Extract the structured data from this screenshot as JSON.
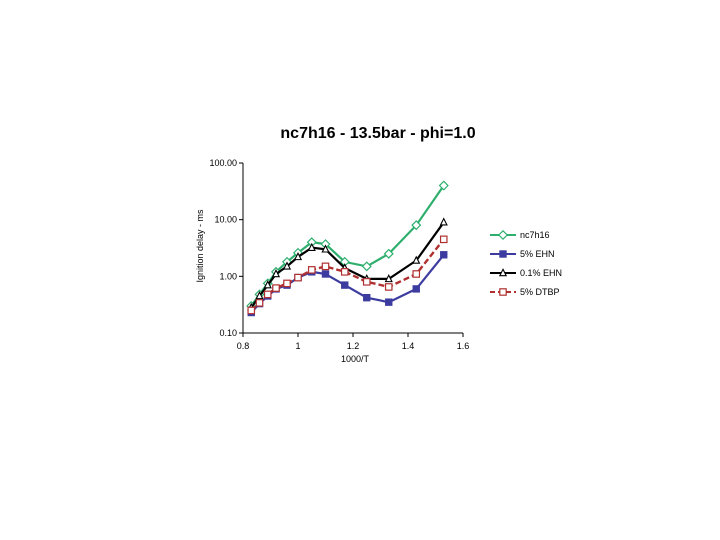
{
  "chart_data": {
    "type": "line",
    "title": "nc7h16 - 13.5bar - phi=1.0",
    "xlabel": "1000/T",
    "ylabel": "Ignition delay - ms",
    "xlim": [
      0.8,
      1.6
    ],
    "ylim": [
      0.1,
      100
    ],
    "yscale": "log",
    "x_ticks": [
      "0.8",
      "1",
      "1.2",
      "1.4",
      "1.6"
    ],
    "y_ticks": [
      "0.10",
      "1.00",
      "10.00",
      "100.00"
    ],
    "legend_position": "right",
    "grid": false,
    "series": [
      {
        "name": "nc7h16",
        "color": "#2EAF6E",
        "marker": "diamond",
        "dash": "solid",
        "x": [
          0.83,
          0.86,
          0.89,
          0.92,
          0.96,
          1.0,
          1.05,
          1.1,
          1.17,
          1.25,
          1.33,
          1.43,
          1.53
        ],
        "y": [
          0.3,
          0.48,
          0.75,
          1.2,
          1.8,
          2.6,
          4.0,
          3.7,
          1.8,
          1.5,
          2.5,
          8.0,
          40.0
        ]
      },
      {
        "name": "5% EHN",
        "color": "#3C3CA0",
        "marker": "square",
        "dash": "solid",
        "x": [
          0.83,
          0.86,
          0.89,
          0.92,
          0.96,
          1.0,
          1.05,
          1.1,
          1.17,
          1.25,
          1.33,
          1.43,
          1.53
        ],
        "y": [
          0.23,
          0.33,
          0.45,
          0.6,
          0.7,
          0.95,
          1.2,
          1.1,
          0.7,
          0.42,
          0.35,
          0.6,
          2.4
        ]
      },
      {
        "name": "0.1% EHN",
        "color": "#000000",
        "marker": "triangle",
        "dash": "solid",
        "x": [
          0.83,
          0.86,
          0.89,
          0.92,
          0.96,
          1.0,
          1.05,
          1.1,
          1.17,
          1.25,
          1.33,
          1.43,
          1.53
        ],
        "y": [
          0.28,
          0.45,
          0.7,
          1.1,
          1.5,
          2.2,
          3.2,
          3.0,
          1.4,
          0.9,
          0.9,
          1.9,
          9.0
        ]
      },
      {
        "name": "5% DTBP",
        "color": "#B03030",
        "marker": "square-open",
        "dash": "dashed",
        "x": [
          0.83,
          0.86,
          0.89,
          0.92,
          0.96,
          1.0,
          1.05,
          1.1,
          1.17,
          1.25,
          1.33,
          1.43,
          1.53
        ],
        "y": [
          0.25,
          0.34,
          0.48,
          0.62,
          0.75,
          0.95,
          1.3,
          1.5,
          1.2,
          0.8,
          0.65,
          1.1,
          4.5
        ]
      }
    ]
  }
}
